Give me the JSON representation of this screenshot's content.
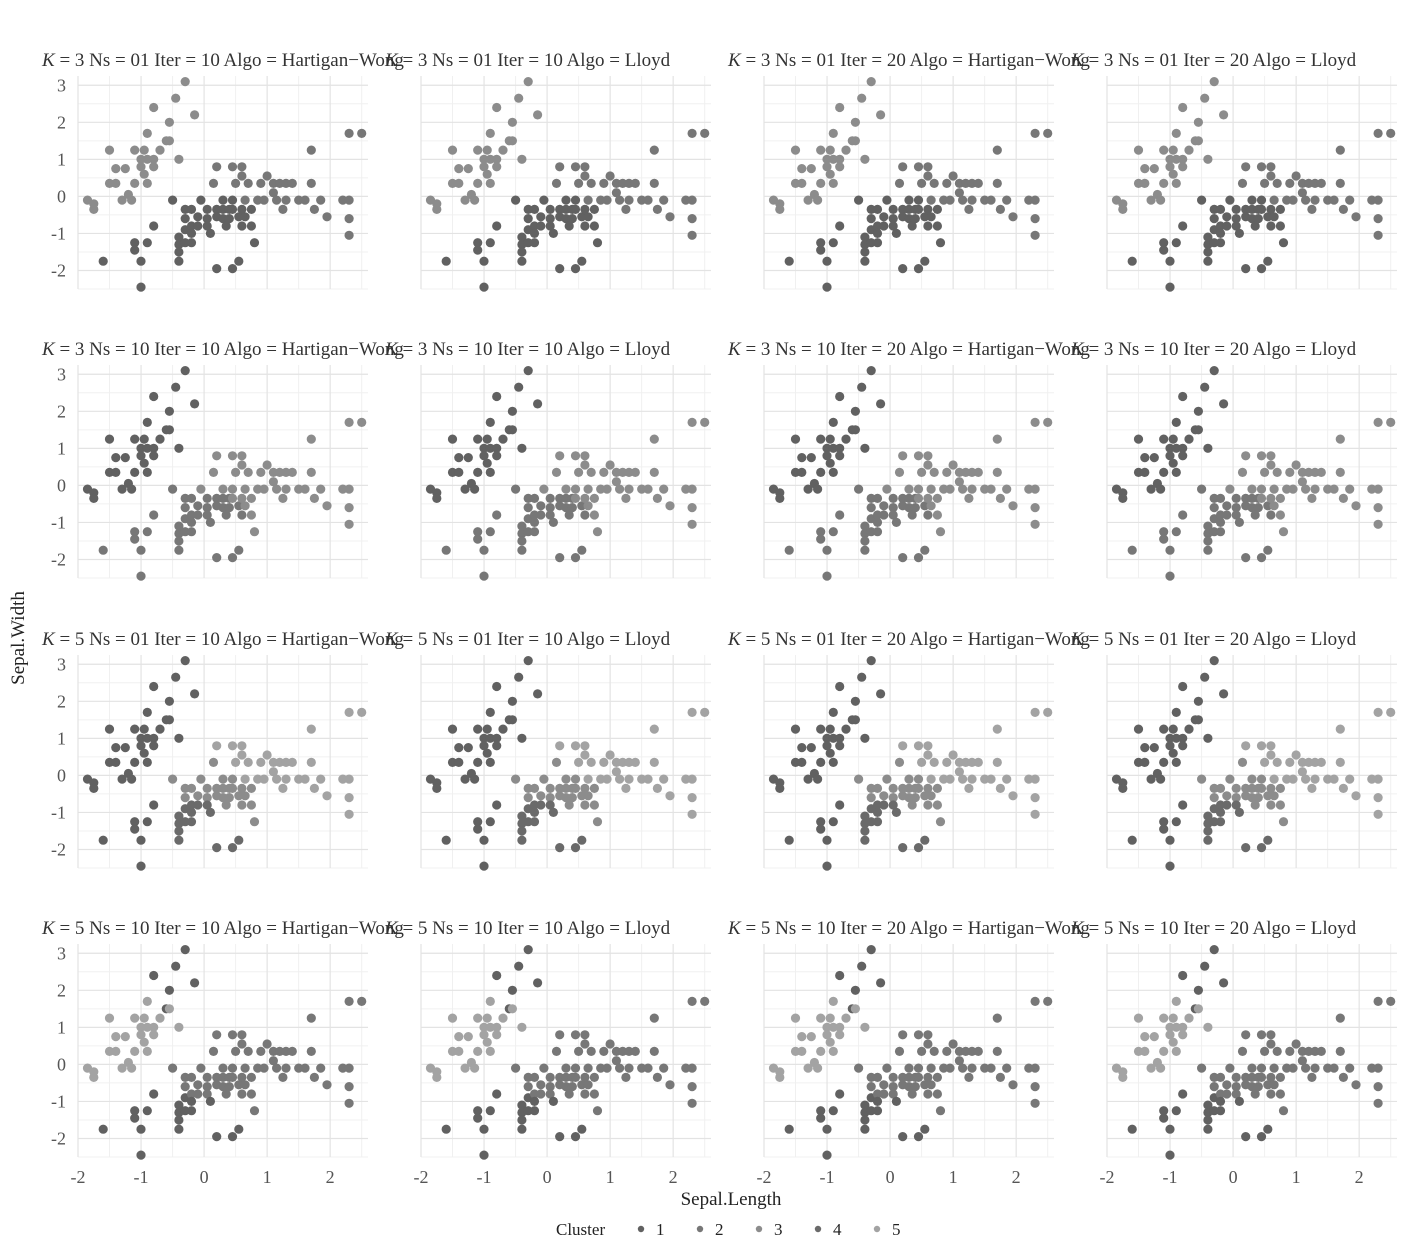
{
  "chart_data": {
    "type": "scatter",
    "xlabel": "Sepal.Length",
    "ylabel": "Sepal.Width",
    "xlim": [
      -2.0,
      2.6
    ],
    "ylim": [
      -2.5,
      3.25
    ],
    "x_ticks": [
      -2,
      -1,
      0,
      1,
      2
    ],
    "y_ticks": [
      -2,
      -1,
      0,
      1,
      2,
      3
    ],
    "x_tick_labels": [
      "-2",
      "-1",
      "0",
      "1",
      "2"
    ],
    "y_tick_labels": [
      "-2",
      "-1",
      "0",
      "1",
      "2",
      "3"
    ],
    "grid": true,
    "legend_position": "bottom",
    "legend": {
      "title": "Cluster",
      "entries": [
        "1",
        "2",
        "3",
        "4",
        "5"
      ],
      "colors": [
        "#616161",
        "#777777",
        "#8c8c8c",
        "#6a6a6a",
        "#a3a3a3"
      ]
    },
    "facets": [
      {
        "title": {
          "k_symbol": "K",
          "text": " = 3 Ns = 01 Iter = 10 Algo = Hartigan−Wong"
        },
        "assignment": "A"
      },
      {
        "title": {
          "k_symbol": "K",
          "text": " = 3 Ns = 01 Iter = 10 Algo = Lloyd"
        },
        "assignment": "A"
      },
      {
        "title": {
          "k_symbol": "K",
          "text": " = 3 Ns = 01 Iter = 20 Algo = Hartigan−Wong"
        },
        "assignment": "A"
      },
      {
        "title": {
          "k_symbol": "K",
          "text": " = 3 Ns = 01 Iter = 20 Algo = Lloyd"
        },
        "assignment": "A"
      },
      {
        "title": {
          "k_symbol": "K",
          "text": " = 3 Ns = 10 Iter = 10 Algo = Hartigan−Wong"
        },
        "assignment": "B"
      },
      {
        "title": {
          "k_symbol": "K",
          "text": " = 3 Ns = 10 Iter = 10 Algo = Lloyd"
        },
        "assignment": "B"
      },
      {
        "title": {
          "k_symbol": "K",
          "text": " = 3 Ns = 10 Iter = 20 Algo = Hartigan−Wong"
        },
        "assignment": "B"
      },
      {
        "title": {
          "k_symbol": "K",
          "text": " = 3 Ns = 10 Iter = 20 Algo = Lloyd"
        },
        "assignment": "B"
      },
      {
        "title": {
          "k_symbol": "K",
          "text": " = 5 Ns = 01 Iter = 10 Algo = Hartigan−Wong"
        },
        "assignment": "C"
      },
      {
        "title": {
          "k_symbol": "K",
          "text": " = 5 Ns = 01 Iter = 10 Algo = Lloyd"
        },
        "assignment": "C"
      },
      {
        "title": {
          "k_symbol": "K",
          "text": " = 5 Ns = 01 Iter = 20 Algo = Hartigan−Wong"
        },
        "assignment": "C"
      },
      {
        "title": {
          "k_symbol": "K",
          "text": " = 5 Ns = 01 Iter = 20 Algo = Lloyd"
        },
        "assignment": "C"
      },
      {
        "title": {
          "k_symbol": "K",
          "text": " = 5 Ns = 10 Iter = 10 Algo = Hartigan−Wong"
        },
        "assignment": "D"
      },
      {
        "title": {
          "k_symbol": "K",
          "text": " = 5 Ns = 10 Iter = 10 Algo = Lloyd"
        },
        "assignment": "D"
      },
      {
        "title": {
          "k_symbol": "K",
          "text": " = 5 Ns = 10 Iter = 20 Algo = Hartigan−Wong"
        },
        "assignment": "D"
      },
      {
        "title": {
          "k_symbol": "K",
          "text": " = 5 Ns = 10 Iter = 20 Algo = Lloyd"
        },
        "assignment": "D"
      }
    ],
    "points": [
      [
        -1.85,
        -0.1
      ],
      [
        -1.75,
        -0.2
      ],
      [
        -1.75,
        -0.35
      ],
      [
        -1.6,
        -1.75
      ],
      [
        -1.5,
        0.35
      ],
      [
        -1.5,
        1.25
      ],
      [
        -1.4,
        0.75
      ],
      [
        -1.4,
        0.35
      ],
      [
        -1.3,
        -0.1
      ],
      [
        -1.25,
        0.75
      ],
      [
        -1.2,
        0.05
      ],
      [
        -1.15,
        -0.1
      ],
      [
        -1.1,
        1.25
      ],
      [
        -1.1,
        0.35
      ],
      [
        -1.1,
        -1.25
      ],
      [
        -1.1,
        -1.45
      ],
      [
        -1.0,
        1.0
      ],
      [
        -1.0,
        0.8
      ],
      [
        -1.0,
        -1.75
      ],
      [
        -1.0,
        -2.45
      ],
      [
        -0.95,
        1.25
      ],
      [
        -0.95,
        0.6
      ],
      [
        -0.9,
        1.7
      ],
      [
        -0.9,
        0.35
      ],
      [
        -0.9,
        1.0
      ],
      [
        -0.9,
        -1.25
      ],
      [
        -0.8,
        2.4
      ],
      [
        -0.8,
        1.0
      ],
      [
        -0.8,
        0.8
      ],
      [
        -0.8,
        -0.8
      ],
      [
        -0.7,
        1.25
      ],
      [
        -0.6,
        1.5
      ],
      [
        -0.55,
        2.0
      ],
      [
        -0.55,
        1.5
      ],
      [
        -0.5,
        -0.1
      ],
      [
        -0.45,
        2.65
      ],
      [
        -0.4,
        1.0
      ],
      [
        -0.4,
        -1.1
      ],
      [
        -0.4,
        -1.3
      ],
      [
        -0.4,
        -1.5
      ],
      [
        -0.4,
        -1.75
      ],
      [
        -0.3,
        3.1
      ],
      [
        -0.3,
        -0.35
      ],
      [
        -0.3,
        -0.6
      ],
      [
        -0.3,
        -0.9
      ],
      [
        -0.3,
        -1.25
      ],
      [
        -0.2,
        -0.35
      ],
      [
        -0.2,
        -0.8
      ],
      [
        -0.2,
        -1.0
      ],
      [
        -0.2,
        -1.25
      ],
      [
        -0.15,
        2.2
      ],
      [
        -0.1,
        -0.55
      ],
      [
        -0.1,
        -0.8
      ],
      [
        -0.05,
        -0.1
      ],
      [
        0.05,
        -0.35
      ],
      [
        0.05,
        -0.6
      ],
      [
        0.05,
        -0.8
      ],
      [
        0.1,
        -1.0
      ],
      [
        0.15,
        0.35
      ],
      [
        0.2,
        0.8
      ],
      [
        0.2,
        -0.35
      ],
      [
        0.2,
        -0.55
      ],
      [
        0.2,
        -1.95
      ],
      [
        0.3,
        -0.1
      ],
      [
        0.3,
        -0.35
      ],
      [
        0.3,
        -0.6
      ],
      [
        0.35,
        -0.8
      ],
      [
        0.4,
        -0.35
      ],
      [
        0.4,
        -0.6
      ],
      [
        0.45,
        0.8
      ],
      [
        0.45,
        -0.1
      ],
      [
        0.45,
        -0.35
      ],
      [
        0.45,
        -1.95
      ],
      [
        0.5,
        0.35
      ],
      [
        0.55,
        -0.55
      ],
      [
        0.55,
        -1.75
      ],
      [
        0.6,
        0.8
      ],
      [
        0.6,
        0.55
      ],
      [
        0.6,
        -0.35
      ],
      [
        0.6,
        -0.8
      ],
      [
        0.65,
        -0.1
      ],
      [
        0.65,
        -0.55
      ],
      [
        0.7,
        0.35
      ],
      [
        0.75,
        -0.35
      ],
      [
        0.75,
        -0.8
      ],
      [
        0.8,
        -1.25
      ],
      [
        0.85,
        -0.1
      ],
      [
        0.9,
        0.35
      ],
      [
        0.95,
        -0.1
      ],
      [
        1.0,
        0.55
      ],
      [
        1.1,
        0.1
      ],
      [
        1.1,
        0.35
      ],
      [
        1.15,
        -0.1
      ],
      [
        1.2,
        0.35
      ],
      [
        1.25,
        -0.35
      ],
      [
        1.3,
        -0.1
      ],
      [
        1.3,
        0.35
      ],
      [
        1.4,
        0.35
      ],
      [
        1.5,
        -0.1
      ],
      [
        1.6,
        -0.1
      ],
      [
        1.7,
        1.25
      ],
      [
        1.7,
        0.35
      ],
      [
        1.75,
        -0.35
      ],
      [
        1.85,
        -0.1
      ],
      [
        1.95,
        -0.55
      ],
      [
        2.2,
        -0.1
      ],
      [
        2.3,
        1.7
      ],
      [
        2.3,
        -0.1
      ],
      [
        2.3,
        -0.6
      ],
      [
        2.3,
        -1.05
      ],
      [
        2.5,
        1.7
      ]
    ],
    "cluster_assignments": {
      "A": [
        3,
        3,
        3,
        1,
        3,
        3,
        3,
        3,
        3,
        3,
        3,
        3,
        3,
        3,
        1,
        1,
        3,
        3,
        1,
        1,
        3,
        3,
        3,
        3,
        3,
        1,
        3,
        3,
        3,
        1,
        3,
        3,
        3,
        3,
        1,
        3,
        3,
        1,
        1,
        1,
        1,
        3,
        1,
        1,
        1,
        1,
        1,
        1,
        1,
        1,
        3,
        1,
        1,
        1,
        1,
        1,
        1,
        1,
        2,
        2,
        1,
        1,
        1,
        1,
        1,
        1,
        1,
        1,
        1,
        2,
        1,
        1,
        1,
        2,
        1,
        1,
        2,
        2,
        1,
        1,
        2,
        1,
        2,
        1,
        1,
        1,
        2,
        2,
        2,
        2,
        2,
        2,
        2,
        2,
        2,
        2,
        2,
        2,
        2,
        2,
        2,
        2,
        2,
        2,
        2,
        2,
        2,
        2,
        2,
        2,
        2
      ],
      "B": [
        1,
        1,
        1,
        2,
        1,
        1,
        1,
        1,
        1,
        1,
        1,
        1,
        1,
        1,
        2,
        2,
        1,
        1,
        2,
        2,
        1,
        1,
        1,
        1,
        1,
        2,
        1,
        1,
        1,
        2,
        1,
        1,
        1,
        1,
        2,
        1,
        1,
        2,
        2,
        2,
        2,
        1,
        2,
        2,
        2,
        2,
        2,
        2,
        2,
        2,
        1,
        2,
        2,
        3,
        2,
        2,
        2,
        2,
        3,
        3,
        2,
        2,
        2,
        3,
        2,
        2,
        2,
        2,
        2,
        3,
        3,
        3,
        2,
        3,
        2,
        2,
        3,
        3,
        3,
        2,
        3,
        3,
        3,
        3,
        3,
        3,
        3,
        3,
        3,
        3,
        3,
        3,
        3,
        3,
        3,
        3,
        3,
        3,
        3,
        3,
        3,
        3,
        3,
        3,
        3,
        3,
        3,
        3,
        3,
        3,
        3
      ],
      "C": [
        1,
        1,
        1,
        1,
        1,
        1,
        1,
        1,
        1,
        1,
        1,
        1,
        1,
        1,
        1,
        1,
        1,
        1,
        1,
        1,
        1,
        1,
        1,
        1,
        1,
        1,
        1,
        1,
        1,
        1,
        1,
        1,
        1,
        1,
        3,
        1,
        1,
        4,
        4,
        4,
        4,
        1,
        3,
        3,
        4,
        4,
        3,
        4,
        4,
        4,
        1,
        3,
        4,
        3,
        3,
        3,
        4,
        4,
        3,
        5,
        3,
        3,
        4,
        3,
        3,
        3,
        3,
        3,
        3,
        5,
        3,
        3,
        4,
        5,
        3,
        4,
        5,
        5,
        3,
        3,
        5,
        3,
        5,
        3,
        3,
        3,
        5,
        5,
        5,
        5,
        5,
        5,
        5,
        5,
        5,
        5,
        5,
        5,
        5,
        5,
        5,
        5,
        5,
        5,
        5,
        5,
        5,
        5,
        5,
        5,
        5
      ],
      "D": [
        5,
        5,
        5,
        1,
        5,
        5,
        5,
        5,
        5,
        5,
        5,
        5,
        5,
        5,
        1,
        1,
        5,
        5,
        1,
        1,
        5,
        5,
        5,
        5,
        5,
        1,
        1,
        5,
        5,
        1,
        5,
        1,
        1,
        5,
        2,
        1,
        5,
        1,
        1,
        1,
        1,
        1,
        2,
        2,
        1,
        1,
        2,
        2,
        1,
        1,
        1,
        2,
        2,
        2,
        2,
        2,
        2,
        1,
        2,
        2,
        2,
        2,
        1,
        2,
        2,
        2,
        2,
        2,
        2,
        2,
        2,
        2,
        1,
        2,
        2,
        1,
        2,
        2,
        2,
        2,
        2,
        2,
        2,
        2,
        2,
        2,
        2,
        2,
        2,
        2,
        2,
        2,
        2,
        2,
        2,
        2,
        2,
        2,
        2,
        2,
        2,
        2,
        2,
        2,
        2,
        2,
        2,
        2,
        2,
        2,
        2
      ]
    }
  }
}
